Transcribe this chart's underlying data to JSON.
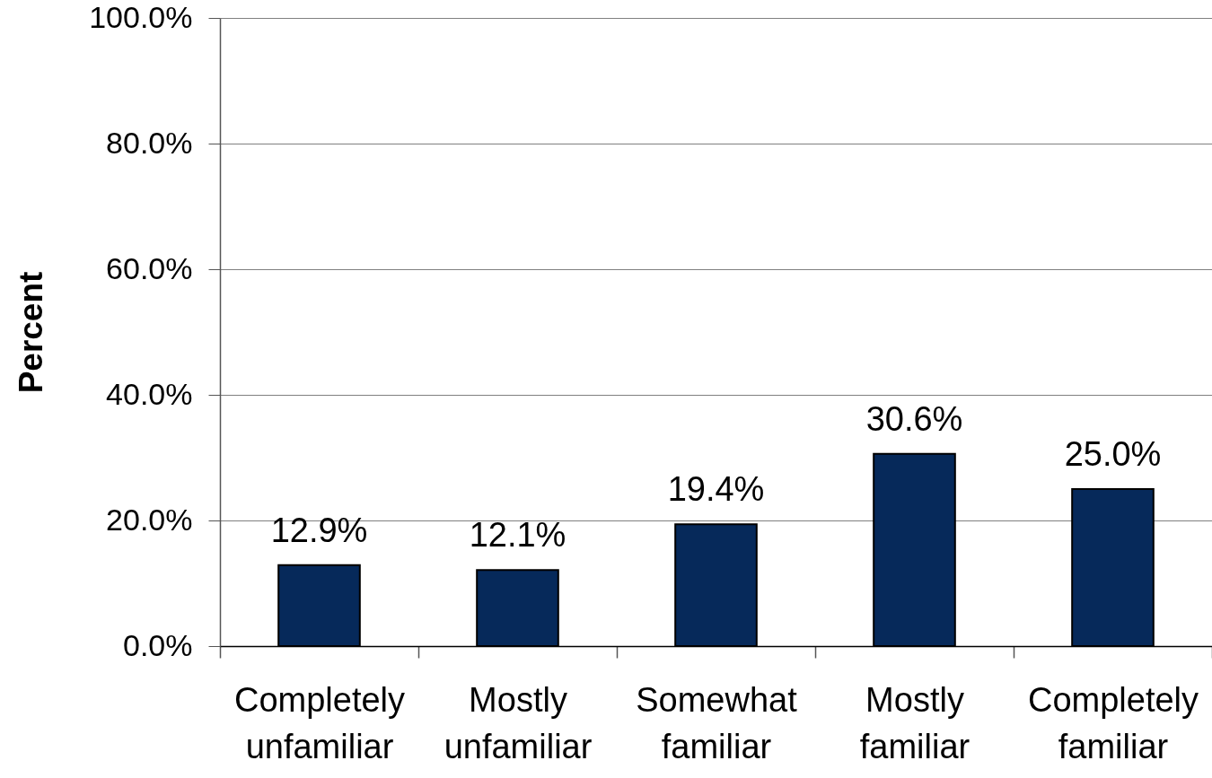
{
  "chart_data": {
    "type": "bar",
    "ylabel": "Percent",
    "categories": [
      "Completely unfamiliar",
      "Mostly unfamiliar",
      "Somewhat familiar",
      "Mostly familiar",
      "Completely familiar"
    ],
    "values": [
      12.9,
      12.1,
      19.4,
      30.6,
      25.0
    ],
    "value_labels": [
      "12.9%",
      "12.1%",
      "19.4%",
      "30.6%",
      "25.0%"
    ],
    "color": "#06295a",
    "ylim": [
      0,
      100
    ],
    "yticks": [
      {
        "value": 0,
        "label": "0.0%"
      },
      {
        "value": 20,
        "label": "20.0%"
      },
      {
        "value": 40,
        "label": "40.0%"
      },
      {
        "value": 60,
        "label": "60.0%"
      },
      {
        "value": 80,
        "label": "80.0%"
      },
      {
        "value": 100,
        "label": "100.0%"
      }
    ],
    "grid": "y"
  }
}
